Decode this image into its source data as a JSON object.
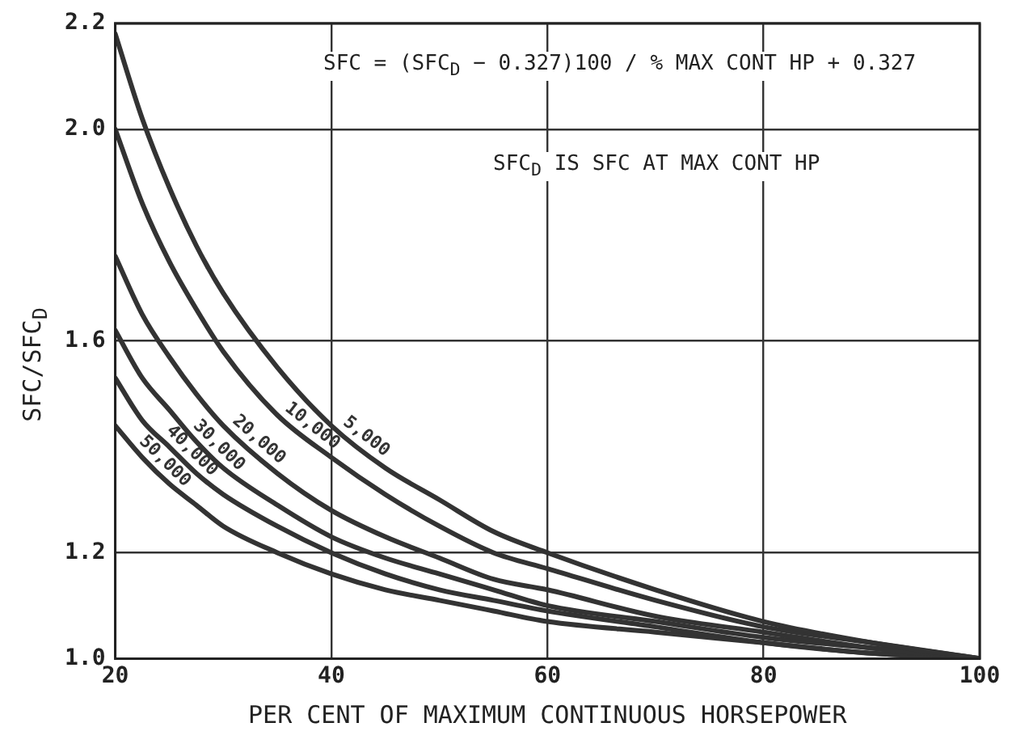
{
  "chart_data": {
    "type": "line",
    "xlabel": "PER CENT OF MAXIMUM CONTINUOUS HORSEPOWER",
    "ylabel": "SFC/SFC$_{D}$",
    "x": [
      20,
      22.5,
      25,
      27.5,
      30,
      35,
      40,
      45,
      50,
      55,
      60,
      70,
      80,
      90,
      100
    ],
    "series": [
      {
        "name": "5,000",
        "color": "#333333",
        "values": [
          2.18,
          2.02,
          1.89,
          1.78,
          1.69,
          1.55,
          1.44,
          1.36,
          1.3,
          1.24,
          1.2,
          1.13,
          1.07,
          1.03,
          1.0
        ]
      },
      {
        "name": "10,000",
        "color": "#333333",
        "values": [
          2.0,
          1.86,
          1.75,
          1.66,
          1.58,
          1.46,
          1.38,
          1.31,
          1.25,
          1.2,
          1.17,
          1.11,
          1.06,
          1.03,
          1.0
        ]
      },
      {
        "name": "20,000",
        "color": "#333333",
        "values": [
          1.76,
          1.65,
          1.57,
          1.5,
          1.44,
          1.35,
          1.28,
          1.23,
          1.19,
          1.15,
          1.13,
          1.08,
          1.05,
          1.02,
          1.0
        ]
      },
      {
        "name": "30,000",
        "color": "#333333",
        "values": [
          1.62,
          1.53,
          1.47,
          1.41,
          1.36,
          1.29,
          1.23,
          1.19,
          1.16,
          1.13,
          1.1,
          1.07,
          1.04,
          1.02,
          1.0
        ]
      },
      {
        "name": "40,000",
        "color": "#333333",
        "values": [
          1.53,
          1.45,
          1.4,
          1.35,
          1.31,
          1.25,
          1.2,
          1.16,
          1.13,
          1.11,
          1.09,
          1.06,
          1.03,
          1.01,
          1.0
        ]
      },
      {
        "name": "50,000",
        "color": "#333333",
        "values": [
          1.44,
          1.38,
          1.33,
          1.29,
          1.25,
          1.2,
          1.16,
          1.13,
          1.11,
          1.09,
          1.07,
          1.05,
          1.03,
          1.01,
          1.0
        ]
      }
    ],
    "xlim": [
      20,
      100
    ],
    "xticks": [
      20,
      40,
      60,
      80,
      100
    ],
    "ylim": [
      1.0,
      2.2
    ],
    "yticks": [
      {
        "value": 1.0,
        "label": "1.0"
      },
      {
        "value": 1.2,
        "label": "1.2"
      },
      {
        "value": 1.6,
        "label": "1.6"
      },
      {
        "value": 2.0,
        "label": "2.0"
      },
      {
        "value": 2.2,
        "label": "2.2"
      }
    ],
    "grid": true,
    "legend": false,
    "marker": "none",
    "line_style": "solid",
    "annotations": [
      "SFC = (SFC$_{D}$ − 0.327)100 / % MAX CONT HP + 0.327",
      "SFC$_{D}$ IS SFC AT MAX CONT HP"
    ]
  }
}
